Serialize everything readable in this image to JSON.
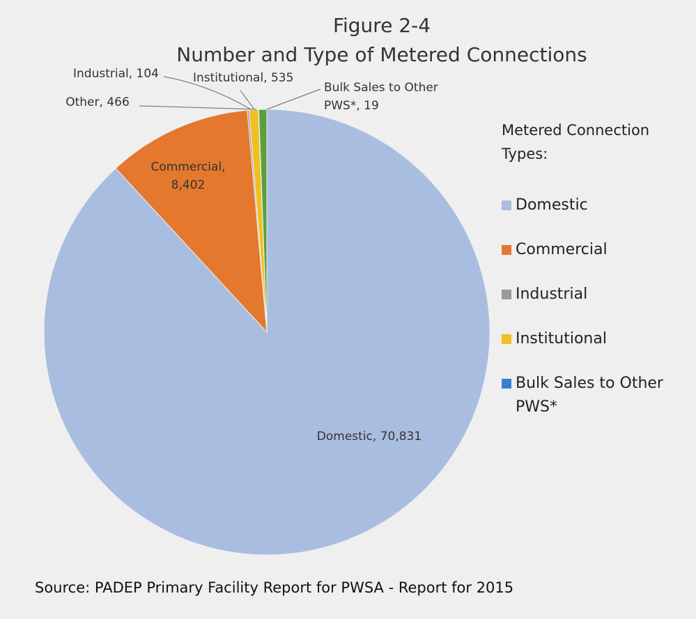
{
  "chart_data": {
    "type": "pie",
    "title": "Figure 2-4",
    "subtitle": "Number and Type of Metered Connections",
    "legend_title": "Metered Connection Types:",
    "categories": [
      "Domestic",
      "Commercial",
      "Industrial",
      "Institutional",
      "Bulk Sales to Other PWS*",
      "Other"
    ],
    "values": [
      70831,
      8402,
      104,
      535,
      19,
      466
    ],
    "value_labels": [
      "Domestic, 70,831",
      "Commercial,\n8,402",
      "Industrial, 104",
      "Institutional, 535",
      "Bulk Sales to Other\nPWS*, 19",
      "Other, 466"
    ],
    "colors": [
      "#a9bde0",
      "#e3782e",
      "#9a9a9a",
      "#f0c020",
      "#3b7dd0",
      "#5a9f3e"
    ],
    "in_legend": [
      true,
      true,
      true,
      true,
      true,
      false
    ],
    "legend_position": "right",
    "annotation": "Source: PADEP Primary Facility Report for PWSA - Report for 2015"
  }
}
